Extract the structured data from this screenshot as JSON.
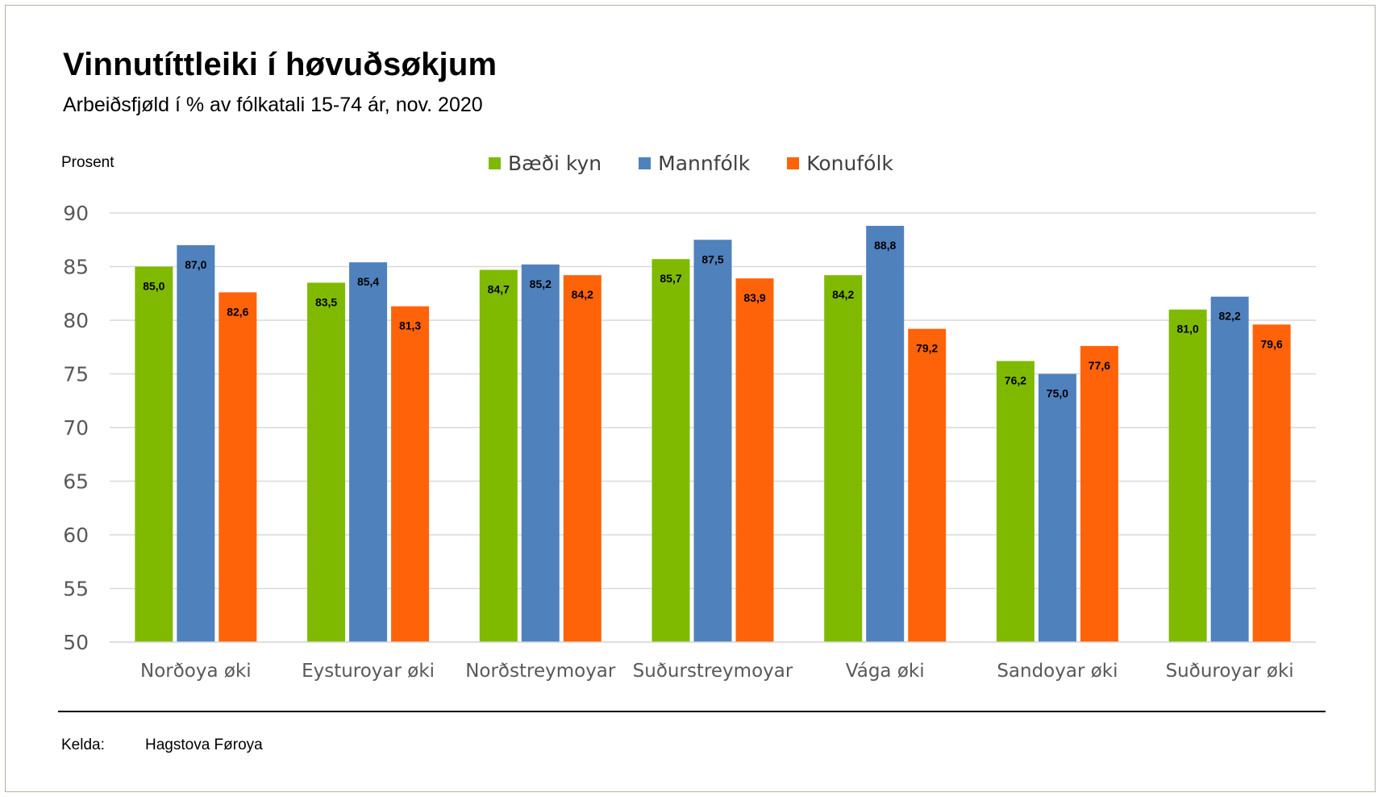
{
  "title": "Vinnutíttleiki í høvuðsøkjum",
  "subtitle": "Arbeiðsfjøld í % av fólkatali 15-74 ár, nov. 2020",
  "footer": {
    "source_label": "Kelda:",
    "source_value": "Hagstova Føroya"
  },
  "chart_data": {
    "type": "bar",
    "title": "Vinnutíttleiki í høvuðsøkjum",
    "subtitle": "Arbeiðsfjøld í % av fólkatali 15-74 ár, nov. 2020",
    "xlabel": "",
    "ylabel": "Prosent",
    "ylim": [
      50,
      90
    ],
    "yticks": [
      "50",
      "55",
      "60",
      "65",
      "70",
      "75",
      "80",
      "85",
      "90"
    ],
    "grid": true,
    "legend_position": "top",
    "categories": [
      "Norðoya øki",
      "Eysturoyar øki",
      "Norðstreymoyar",
      "Suðurstreymoyar",
      "Vága øki",
      "Sandoyar øki",
      "Suðuroyar øki"
    ],
    "series": [
      {
        "name": "Bæði kyn",
        "color": "#7fba00",
        "values": [
          85.0,
          83.5,
          84.7,
          85.7,
          84.2,
          76.2,
          81.0
        ],
        "labels": [
          "85,0",
          "83,5",
          "84,7",
          "85,7",
          "84,2",
          "76,2",
          "81,0"
        ]
      },
      {
        "name": "Mannfólk",
        "color": "#4f81bd",
        "values": [
          87.0,
          85.4,
          85.2,
          87.5,
          88.8,
          75.0,
          82.2
        ],
        "labels": [
          "87,0",
          "85,4",
          "85,2",
          "87,5",
          "88,8",
          "75,0",
          "82,2"
        ]
      },
      {
        "name": "Konufólk",
        "color": "#ff6309",
        "values": [
          82.6,
          81.3,
          84.2,
          83.9,
          79.2,
          77.6,
          79.6
        ],
        "labels": [
          "82,6",
          "81,3",
          "84,2",
          "83,9",
          "79,2",
          "77,6",
          "79,6"
        ]
      }
    ]
  }
}
